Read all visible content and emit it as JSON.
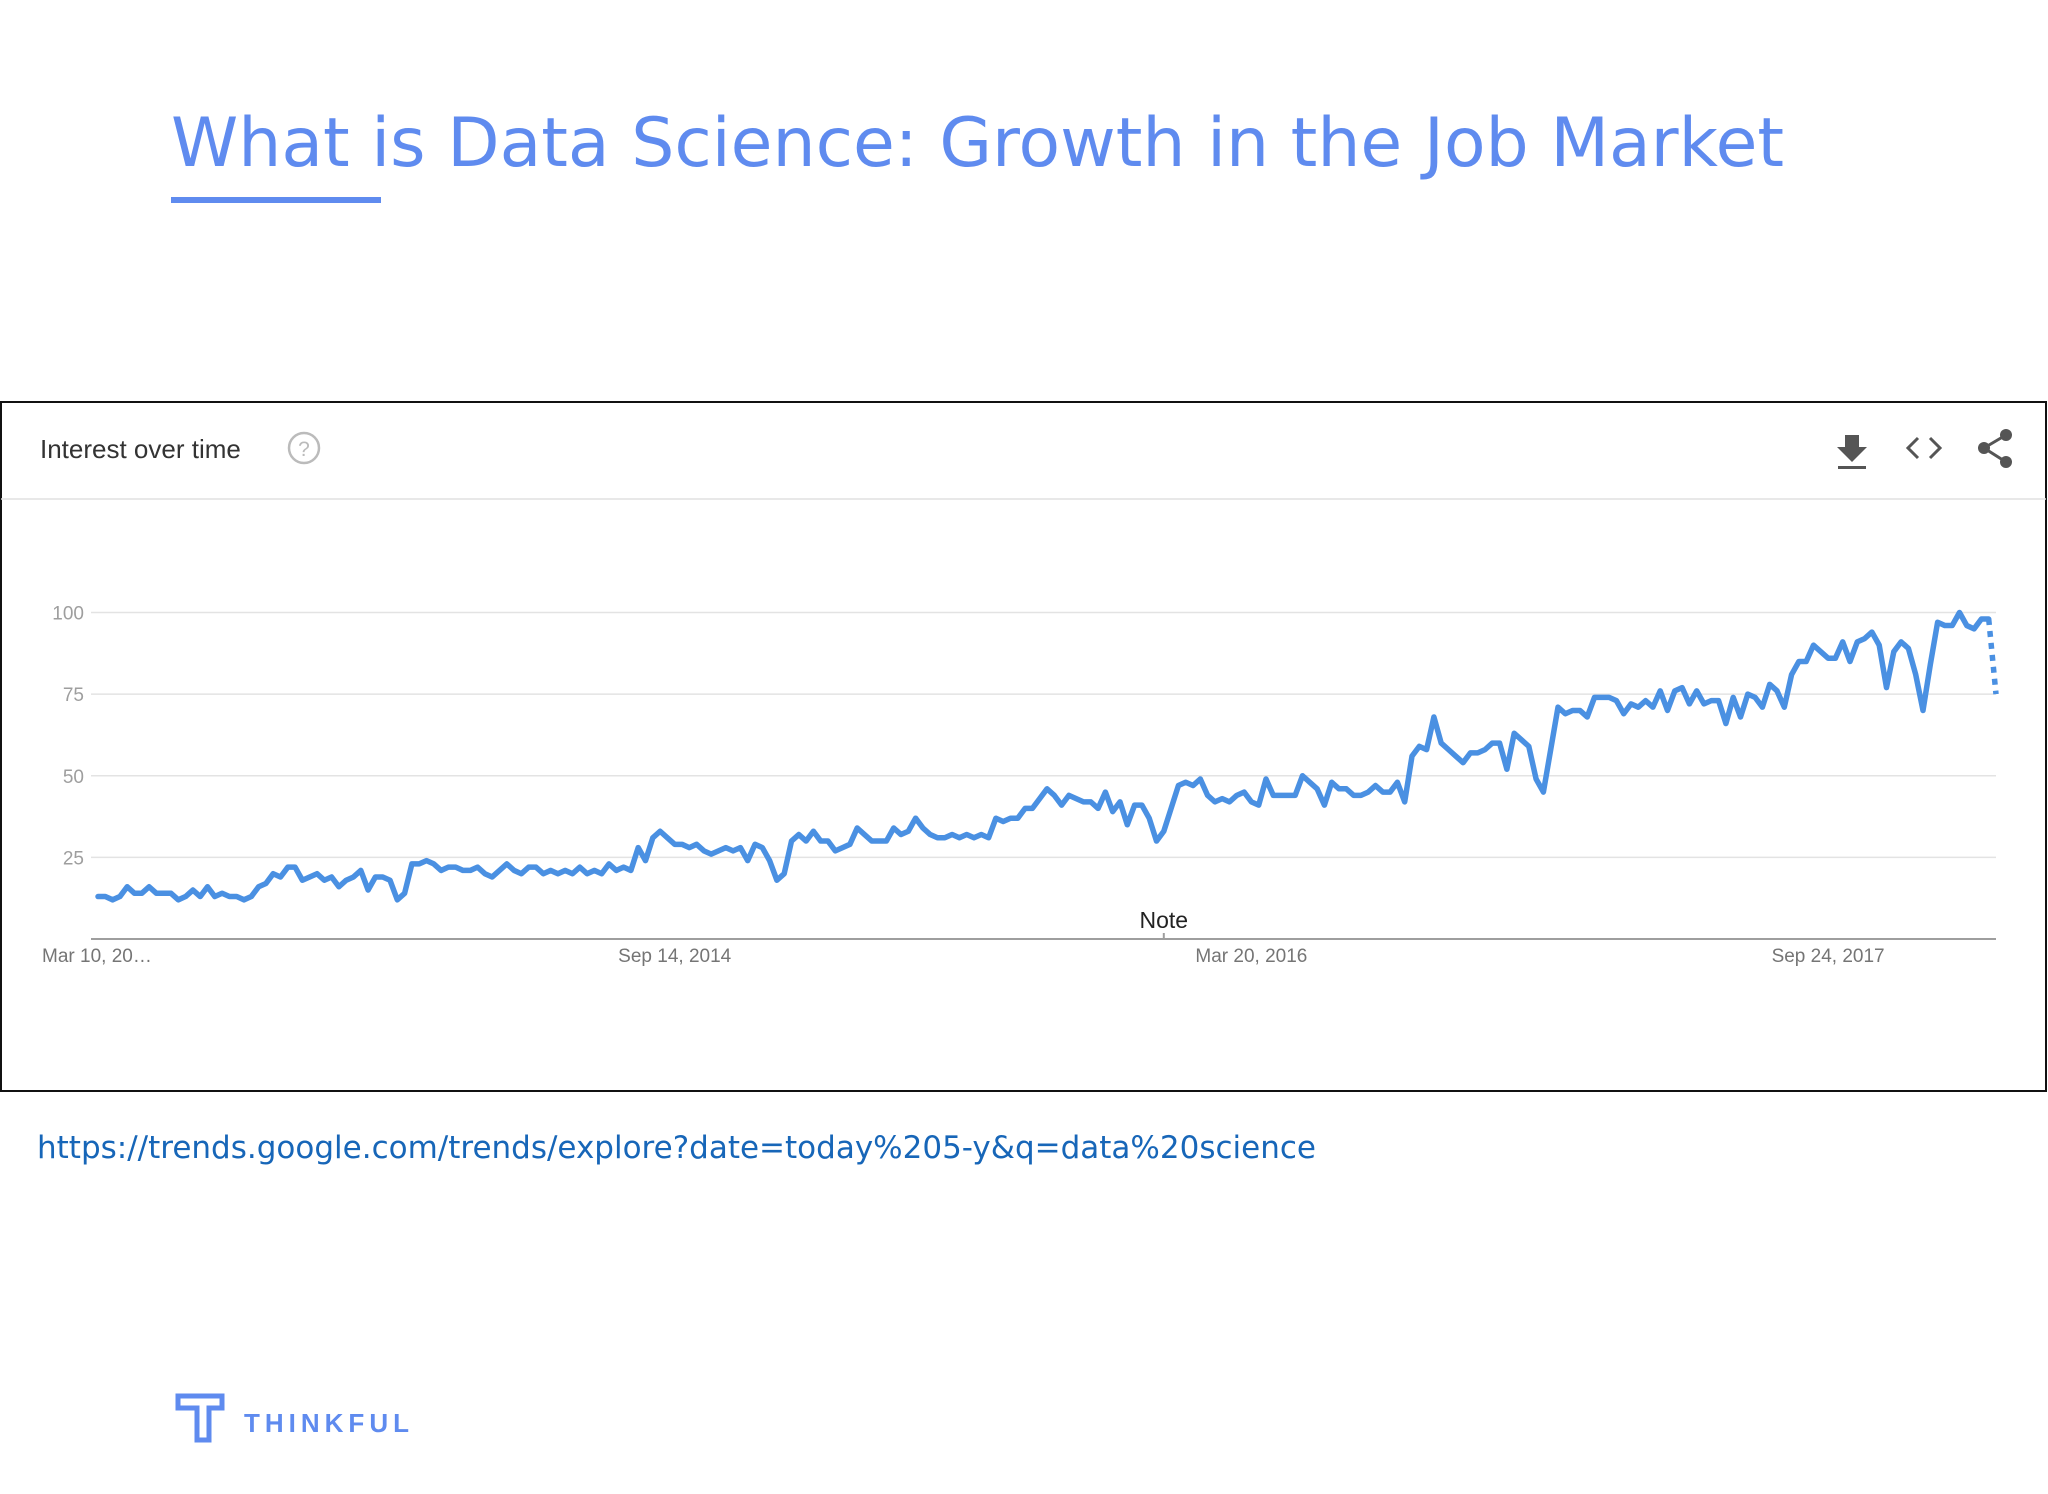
{
  "chart_data": {
    "type": "line",
    "slide_title": "What is Data Science: Growth in the Job Market",
    "title": "Interest over time",
    "annotation": "Note",
    "source_url": "https://trends.google.com/trends/explore?date=today%205-y&q=data%20science",
    "brand": "THINKFUL",
    "categories": [
      "Mar 10, 20…",
      null,
      null,
      null,
      null,
      null,
      null,
      null,
      null,
      null,
      null,
      null,
      null,
      null,
      null,
      null,
      null,
      null,
      null,
      null,
      null,
      null,
      null,
      null,
      null,
      null,
      null,
      null,
      null,
      null,
      null,
      null,
      null,
      null,
      null,
      null,
      null,
      null,
      null,
      null,
      null,
      null,
      null,
      null,
      null,
      null,
      null,
      null,
      null,
      null,
      null,
      null,
      null,
      null,
      null,
      null,
      null,
      null,
      null,
      null,
      null,
      null,
      null,
      null,
      null,
      null,
      null,
      null,
      null,
      null,
      null,
      null,
      null,
      null,
      null,
      null,
      null,
      null,
      null,
      "Sep 14, 2014",
      null,
      null,
      null,
      null,
      null,
      null,
      null,
      null,
      null,
      null,
      null,
      null,
      null,
      null,
      null,
      null,
      null,
      null,
      null,
      null,
      null,
      null,
      null,
      null,
      null,
      null,
      null,
      null,
      null,
      null,
      null,
      null,
      null,
      null,
      null,
      null,
      null,
      null,
      null,
      null,
      null,
      null,
      null,
      null,
      null,
      null,
      null,
      null,
      null,
      null,
      null,
      null,
      null,
      null,
      null,
      null,
      null,
      null,
      null,
      null,
      null,
      null,
      null,
      null,
      null,
      null,
      null,
      null,
      null,
      null,
      null,
      null,
      null,
      null,
      null,
      null,
      null,
      null,
      "Mar 20, 2016",
      null,
      null,
      null,
      null,
      null,
      null,
      null,
      null,
      null,
      null,
      null,
      null,
      null,
      null,
      null,
      null,
      null,
      null,
      null,
      null,
      null,
      null,
      null,
      null,
      null,
      null,
      null,
      null,
      null,
      null,
      null,
      null,
      null,
      null,
      null,
      null,
      null,
      null,
      null,
      null,
      null,
      null,
      null,
      null,
      null,
      null,
      null,
      null,
      null,
      null,
      null,
      null,
      null,
      null,
      null,
      null,
      null,
      null,
      null,
      null,
      null,
      null,
      null,
      null,
      null,
      null,
      null,
      null,
      null,
      null,
      null,
      null,
      null,
      null,
      null,
      null,
      null,
      null,
      "Sep 24, 2017",
      null,
      null,
      null,
      null,
      null,
      null,
      null,
      null,
      null,
      null,
      null,
      null,
      null,
      null,
      null,
      null,
      null,
      null,
      null,
      null,
      null,
      null,
      null
    ],
    "series": [
      {
        "color": "#4a90e2",
        "values": [
          13,
          13,
          12,
          13,
          16,
          14,
          14,
          16,
          14,
          14,
          14,
          12,
          13,
          15,
          13,
          16,
          13,
          14,
          13,
          13,
          12,
          13,
          16,
          17,
          20,
          19,
          22,
          22,
          18,
          19,
          20,
          18,
          19,
          16,
          18,
          19,
          21,
          15,
          19,
          19,
          18,
          12,
          14,
          23,
          23,
          24,
          23,
          21,
          22,
          22,
          21,
          21,
          22,
          20,
          19,
          21,
          23,
          21,
          20,
          22,
          22,
          20,
          21,
          20,
          21,
          20,
          22,
          20,
          21,
          20,
          23,
          21,
          22,
          21,
          28,
          24,
          31,
          33,
          31,
          29,
          29,
          28,
          29,
          27,
          26,
          27,
          28,
          27,
          28,
          24,
          29,
          28,
          24,
          18,
          20,
          30,
          32,
          30,
          33,
          30,
          30,
          27,
          28,
          29,
          34,
          32,
          30,
          30,
          30,
          34,
          32,
          33,
          37,
          34,
          32,
          31,
          31,
          32,
          31,
          32,
          31,
          32,
          31,
          37,
          36,
          37,
          37,
          40,
          40,
          43,
          46,
          44,
          41,
          44,
          43,
          42,
          42,
          40,
          45,
          39,
          42,
          35,
          41,
          41,
          37,
          30,
          33,
          40,
          47,
          48,
          47,
          49,
          44,
          42,
          43,
          42,
          44,
          45,
          42,
          41,
          49,
          44,
          44,
          44,
          44,
          50,
          48,
          46,
          41,
          48,
          46,
          46,
          44,
          44,
          45,
          47,
          45,
          45,
          48,
          42,
          56,
          59,
          58,
          68,
          60,
          58,
          56,
          54,
          57,
          57,
          58,
          60,
          60,
          52,
          63,
          61,
          59,
          49,
          45,
          58,
          71,
          69,
          70,
          70,
          68,
          74,
          74,
          74,
          73,
          69,
          72,
          71,
          73,
          71,
          76,
          70,
          76,
          77,
          72,
          76,
          72,
          73,
          73,
          66,
          74,
          68,
          75,
          74,
          71,
          78,
          76,
          71,
          81,
          85,
          85,
          90,
          88,
          86,
          86,
          91,
          85,
          91,
          92,
          94,
          90,
          77,
          88,
          91,
          89,
          81,
          70,
          84,
          97,
          96,
          96,
          100,
          96,
          95,
          98,
          98,
          75
        ]
      }
    ],
    "partial_last": true,
    "ylim": [
      0,
      100
    ],
    "yticks": [
      25,
      50,
      75,
      100
    ],
    "grid": true
  }
}
